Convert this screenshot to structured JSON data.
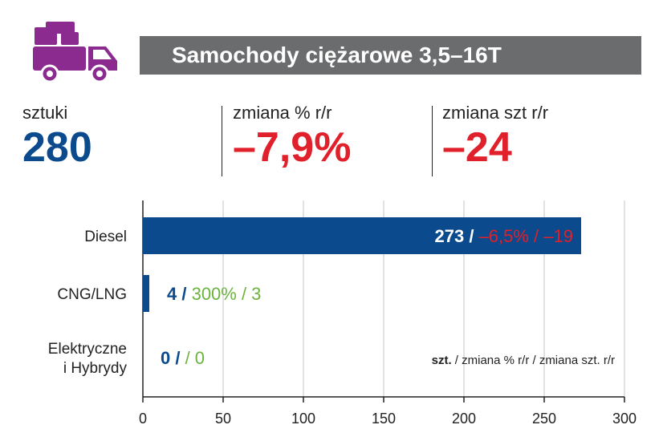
{
  "header": {
    "title": "Samochody ciężarowe 3,5–16T",
    "icon": "truck-icon"
  },
  "stats": [
    {
      "label": "sztuki",
      "value": "280"
    },
    {
      "label": "zmiana % r/r",
      "value": "–7,9%"
    },
    {
      "label": "zmiana szt r/r",
      "value": "–24"
    }
  ],
  "colors": {
    "blue": "#0b4a8c",
    "red": "#e0202a",
    "green": "#6cb33e",
    "grey": "#6b6c6e",
    "purple": "#8b2b8f"
  },
  "chart_data": {
    "type": "bar",
    "orientation": "horizontal",
    "categories": [
      "Diesel",
      "CNG/LNG",
      "Elektryczne i Hybrydy"
    ],
    "category_lines": [
      [
        "Diesel"
      ],
      [
        "CNG/LNG"
      ],
      [
        "Elektryczne",
        "i Hybrydy"
      ]
    ],
    "values": [
      273,
      4,
      0
    ],
    "pct_change": [
      "–6,5%",
      "300%",
      ""
    ],
    "abs_change": [
      "–19",
      "3",
      "0"
    ],
    "change_sign": [
      "negative",
      "positive",
      "positive"
    ],
    "xlim": [
      0,
      300
    ],
    "xticks": [
      0,
      50,
      100,
      150,
      200,
      250,
      300
    ],
    "grid": true,
    "legend": {
      "bold": "szt.",
      "rest": " / zmiana % r/r / zmiana szt. r/r"
    }
  }
}
